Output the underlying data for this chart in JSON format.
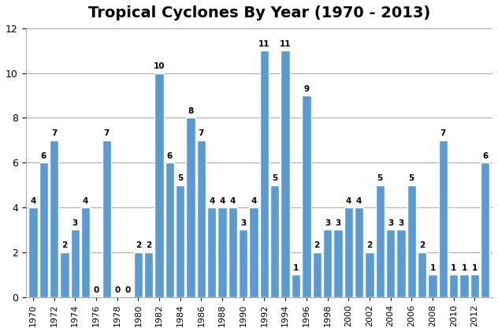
{
  "title": "Tropical Cyclones By Year (1970 - 2013)",
  "years": [
    1970,
    1971,
    1972,
    1973,
    1974,
    1975,
    1976,
    1977,
    1978,
    1979,
    1980,
    1981,
    1982,
    1983,
    1984,
    1985,
    1986,
    1987,
    1988,
    1989,
    1990,
    1991,
    1992,
    1993,
    1994,
    1995,
    1996,
    1997,
    1998,
    1999,
    2000,
    2001,
    2002,
    2003,
    2004,
    2005,
    2006,
    2007,
    2008,
    2009,
    2010,
    2011,
    2012,
    2013
  ],
  "values": [
    4,
    6,
    7,
    2,
    3,
    4,
    0,
    7,
    0,
    0,
    2,
    2,
    10,
    6,
    5,
    8,
    7,
    4,
    4,
    4,
    3,
    4,
    11,
    5,
    11,
    1,
    9,
    2,
    3,
    3,
    4,
    4,
    2,
    5,
    3,
    3,
    5,
    2,
    1,
    7,
    1,
    1,
    1,
    6
  ],
  "bar_color": "#5B9BD5",
  "ylim": [
    0,
    12
  ],
  "yticks": [
    0,
    2,
    4,
    6,
    8,
    10,
    12
  ],
  "label_fontsize": 7.5,
  "title_fontsize": 14,
  "grid_color": "#AAAAAA",
  "background_color": "#ffffff",
  "fig_width": 6.32,
  "fig_height": 4.21,
  "dpi": 100
}
